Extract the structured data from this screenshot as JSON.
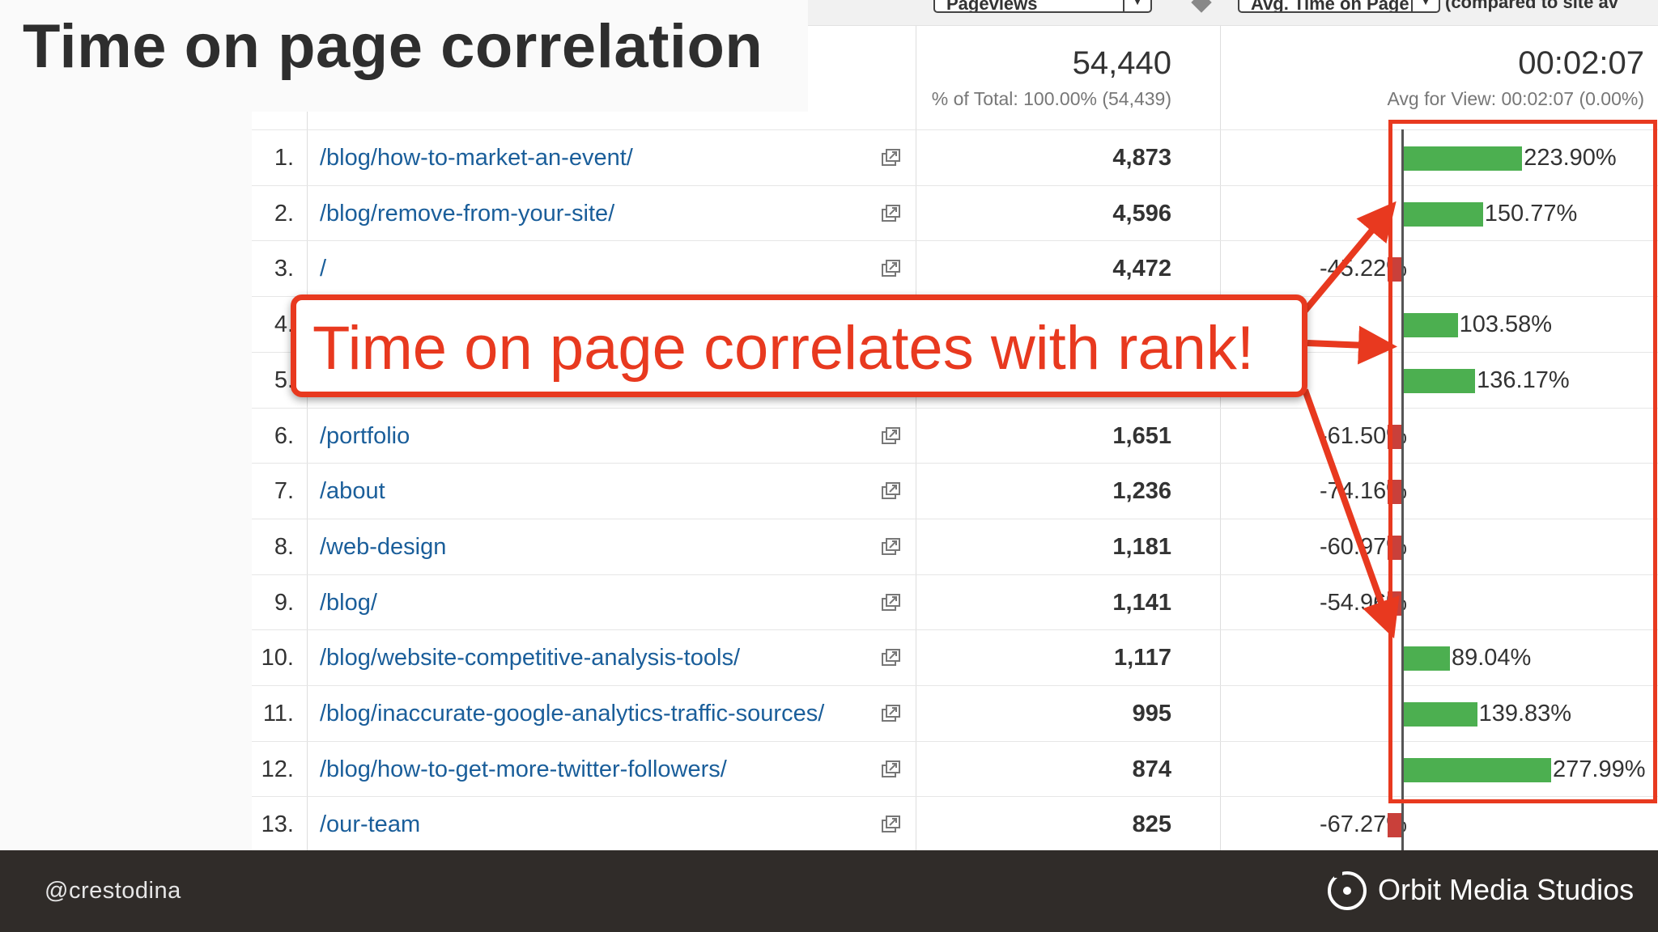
{
  "slide": {
    "title": "Time on page correlation",
    "callout": "Time on page correlates with rank!",
    "footer_handle": "@crestodina",
    "brand": "Orbit Media Studios"
  },
  "header": {
    "metric1_select": "Pageviews",
    "metric2_select": "Avg. Time on Page",
    "comparison_note": "(compared to site av"
  },
  "summary": {
    "pageviews_total": "54,440",
    "pageviews_note": "% of Total: 100.00% (54,439)",
    "avg_time": "00:02:07",
    "avg_time_note": "Avg for View: 00:02:07 (0.00%)"
  },
  "rows": [
    {
      "num": "1.",
      "page": "/blog/how-to-market-an-event/",
      "views": "4,873",
      "pct": "223.90%",
      "value": 223.9
    },
    {
      "num": "2.",
      "page": "/blog/remove-from-your-site/",
      "views": "4,596",
      "pct": "150.77%",
      "value": 150.77
    },
    {
      "num": "3.",
      "page": "/",
      "views": "4,472",
      "pct": "-45.22%",
      "value": -45.22
    },
    {
      "num": "4.",
      "page": "",
      "views": "",
      "pct": "103.58%",
      "value": 103.58
    },
    {
      "num": "5.",
      "page": "",
      "views": "",
      "pct": "136.17%",
      "value": 136.17
    },
    {
      "num": "6.",
      "page": "/portfolio",
      "views": "1,651",
      "pct": "-61.50%",
      "value": -61.5
    },
    {
      "num": "7.",
      "page": "/about",
      "views": "1,236",
      "pct": "-74.16%",
      "value": -74.16
    },
    {
      "num": "8.",
      "page": "/web-design",
      "views": "1,181",
      "pct": "-60.97%",
      "value": -60.97
    },
    {
      "num": "9.",
      "page": "/blog/",
      "views": "1,141",
      "pct": "-54.96%",
      "value": -54.96
    },
    {
      "num": "10.",
      "page": "/blog/website-competitive-analysis-tools/",
      "views": "1,117",
      "pct": "89.04%",
      "value": 89.04
    },
    {
      "num": "11.",
      "page": "/blog/inaccurate-google-analytics-traffic-sources/",
      "views": "995",
      "pct": "139.83%",
      "value": 139.83
    },
    {
      "num": "12.",
      "page": "/blog/how-to-get-more-twitter-followers/",
      "views": "874",
      "pct": "277.99%",
      "value": 277.99
    },
    {
      "num": "13.",
      "page": "/our-team",
      "views": "825",
      "pct": "-67.27%",
      "value": -67.27
    }
  ],
  "colors": {
    "positive_bar": "#4caf50",
    "negative_bar": "#c9403a",
    "callout": "#e8391f",
    "link": "#1a5e9a"
  }
}
